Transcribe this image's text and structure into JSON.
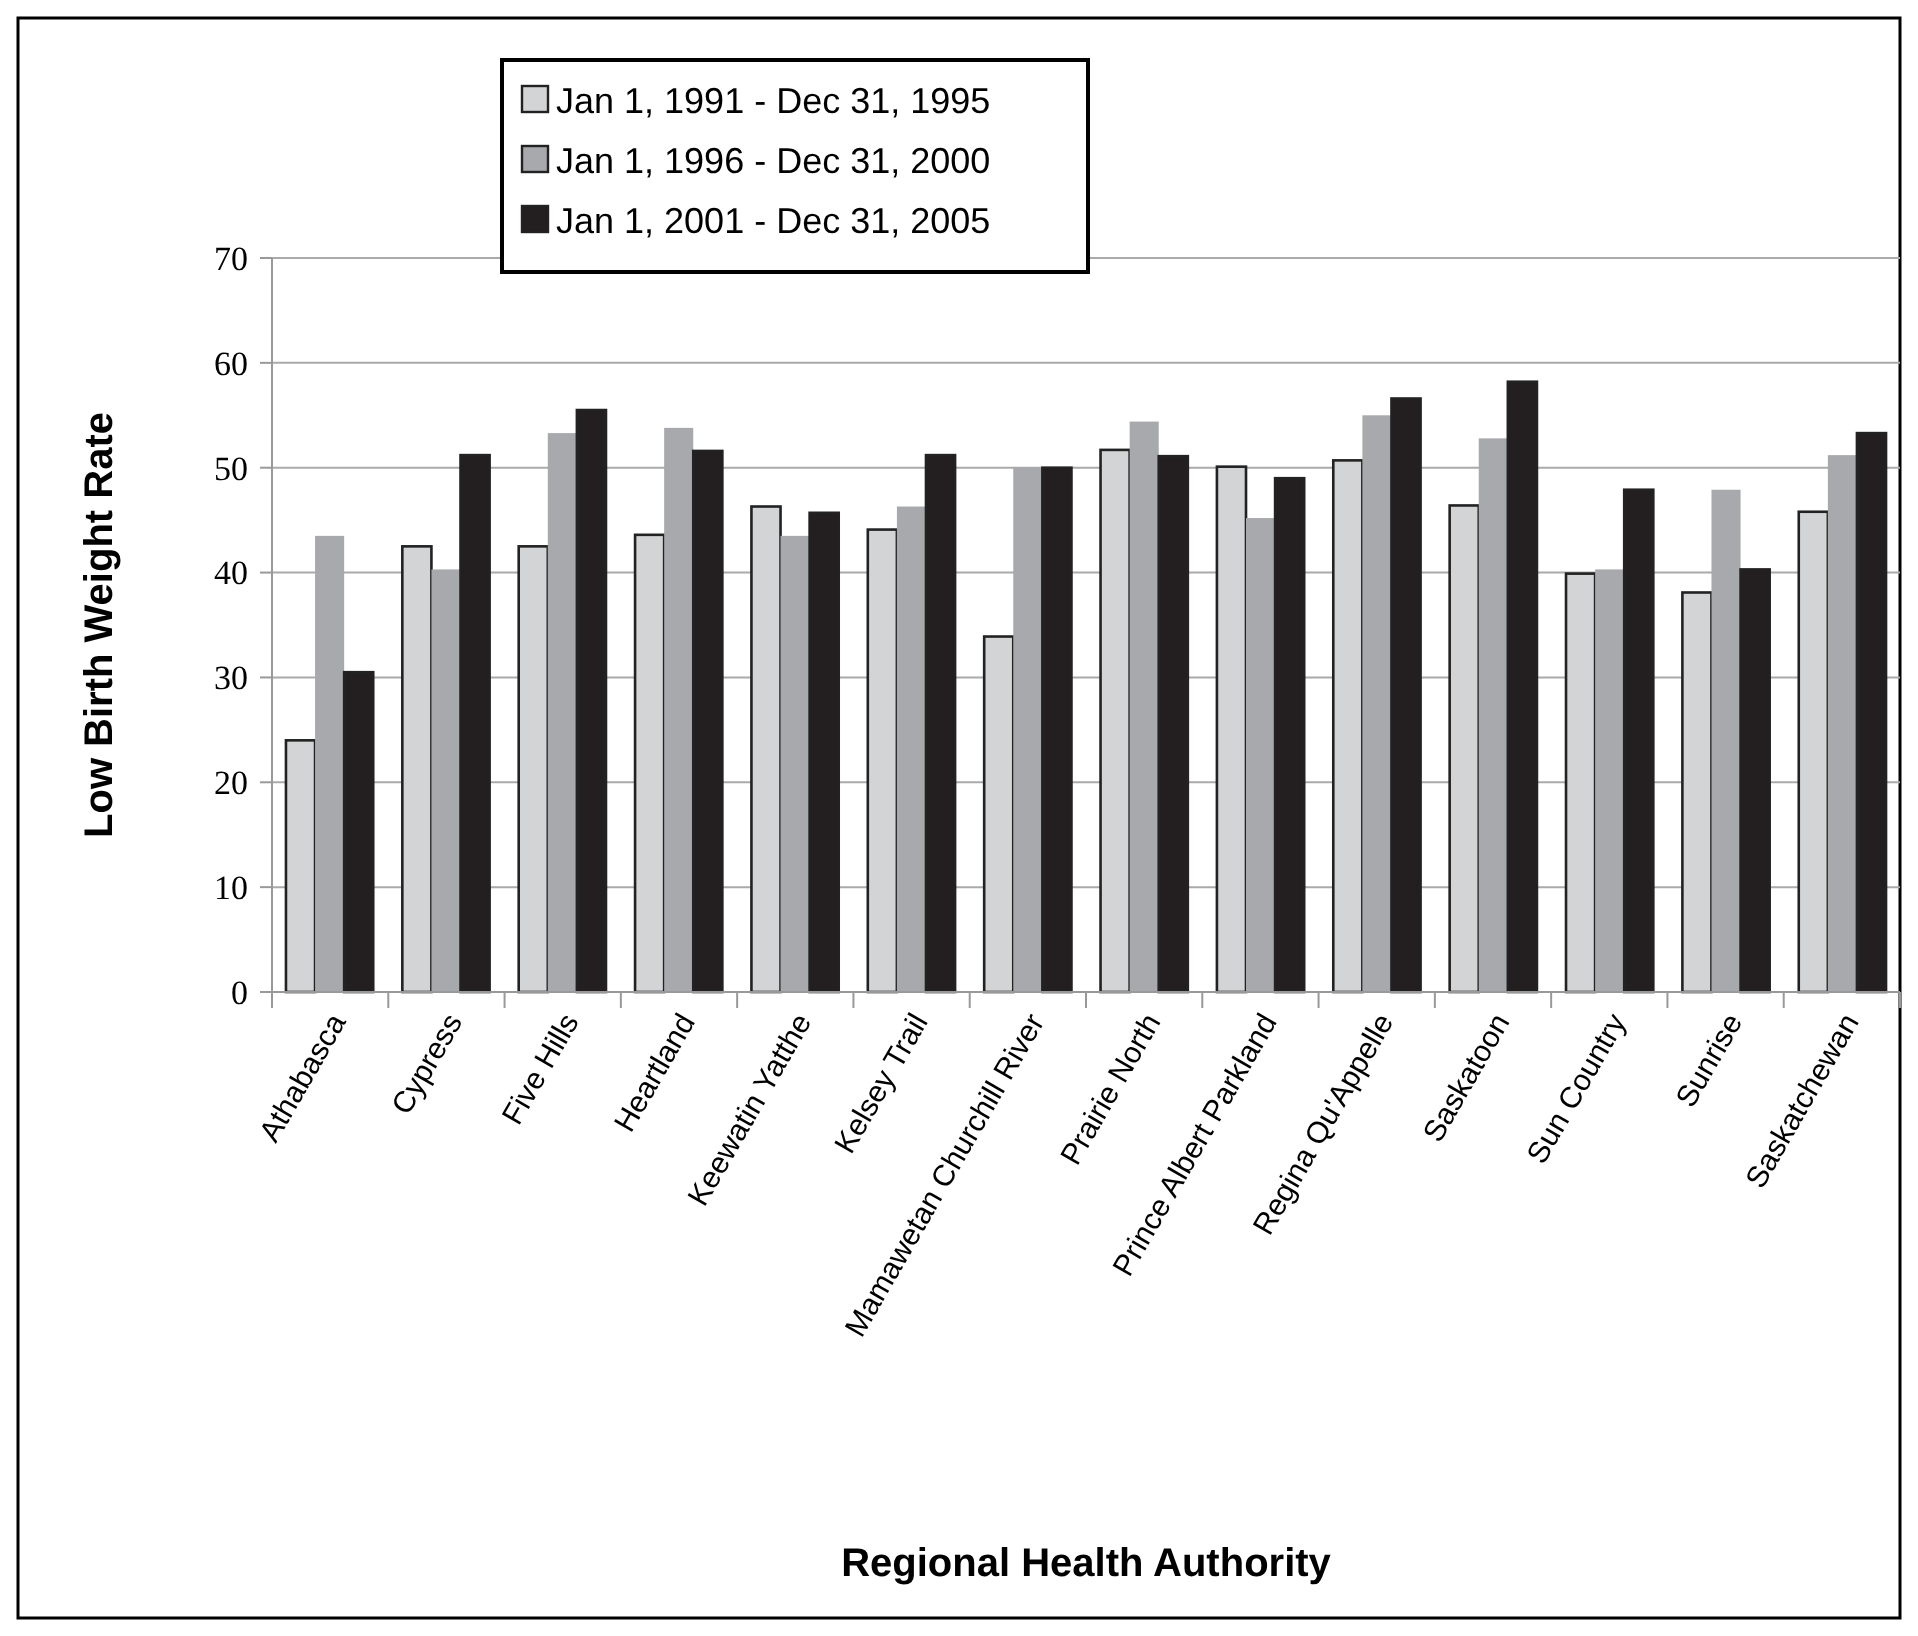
{
  "chart_data": {
    "type": "bar",
    "xlabel": "Regional Health Authority",
    "ylabel": "Low Birth Weight Rate",
    "categories": [
      "Athabasca",
      "Cypress",
      "Five Hills",
      "Heartland",
      "Keewatin Yatthe",
      "Kelsey Trail",
      "Mamawetan Churchill River",
      "Prairie North",
      "Prince Albert Parkland",
      "Regina Qu'Appelle",
      "Saskatoon",
      "Sun Country",
      "Sunrise",
      "Saskatchewan"
    ],
    "series": [
      {
        "name": "Jan 1, 1991 - Dec 31, 1995",
        "color": "#d3d4d6",
        "values": [
          24,
          42.5,
          42.5,
          43.6,
          46.3,
          44.1,
          33.9,
          51.7,
          50.1,
          50.7,
          46.4,
          39.9,
          38.1,
          45.8
        ]
      },
      {
        "name": "Jan 1, 1996 - Dec 31, 2000",
        "color": "#a8a9ad",
        "values": [
          43.5,
          40.3,
          53.3,
          53.8,
          43.5,
          46.3,
          50,
          54.4,
          45.2,
          55,
          52.8,
          40.3,
          47.9,
          51.2
        ]
      },
      {
        "name": "Jan 1, 2001 - Dec 31, 2005",
        "color": "#231f20",
        "values": [
          30.5,
          51.2,
          55.5,
          51.6,
          45.7,
          51.2,
          50,
          51.1,
          49,
          56.6,
          58.2,
          47.9,
          40.3,
          53.3
        ]
      }
    ],
    "ylim": [
      0,
      70
    ],
    "yticks": [
      0,
      10,
      20,
      30,
      40,
      50,
      60,
      70
    ],
    "grid": "y",
    "legend": "top"
  }
}
